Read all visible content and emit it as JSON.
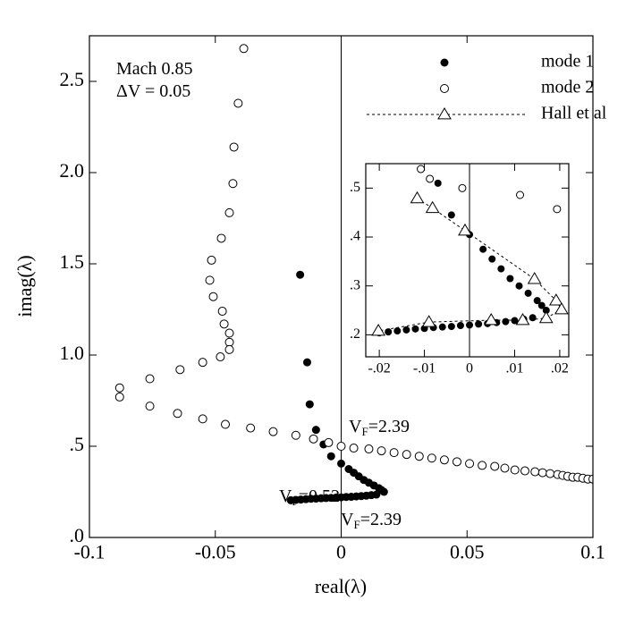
{
  "chart_data": [
    {
      "type": "scatter",
      "xlabel": "real(λ)",
      "ylabel": "imag(λ)",
      "xlim": [
        -0.1,
        0.1
      ],
      "ylim": [
        0,
        2.75
      ],
      "xticks": [
        -0.1,
        -0.05,
        0,
        0.05,
        0.1
      ],
      "yticks": [
        {
          "value": 0,
          "label": ".0"
        },
        {
          "value": 0.5,
          "label": ".5"
        },
        {
          "value": 1,
          "label": "1.0"
        },
        1.5,
        {
          "value": 2,
          "label": "2.0"
        },
        2.5
      ],
      "legend": "upper right",
      "annotations": [
        {
          "text": "Mach 0.85"
        },
        {
          "text": "ΔV = 0.05"
        },
        {
          "base": "V",
          "sub": "F",
          "text": "=2.39"
        },
        {
          "base": "V",
          "sub": "F",
          "text": "=0.52"
        },
        {
          "base": "V",
          "sub": "F",
          "text": "=2.39"
        }
      ],
      "series": [
        {
          "name": "mode 1",
          "marker": "filled-circle",
          "color": "#000000",
          "x": [
            -0.0163,
            -0.0135,
            -0.0125,
            -0.01,
            -0.007,
            -0.004,
            0,
            0.003,
            0.005,
            0.007,
            0.009,
            0.011,
            0.013,
            0.015,
            0.016,
            0.017,
            0.014,
            0.012,
            0.01,
            0.008,
            0.006,
            0.004,
            0.002,
            0,
            -0.002,
            -0.004,
            -0.006,
            -0.008,
            -0.01,
            -0.012,
            -0.014,
            -0.016,
            -0.018,
            -0.02
          ],
          "values": [
            1.44,
            0.96,
            0.73,
            0.59,
            0.51,
            0.445,
            0.405,
            0.375,
            0.355,
            0.335,
            0.315,
            0.3,
            0.285,
            0.27,
            0.26,
            0.25,
            0.235,
            0.232,
            0.229,
            0.227,
            0.225,
            0.223,
            0.222,
            0.22,
            0.219,
            0.217,
            0.216,
            0.215,
            0.213,
            0.212,
            0.21,
            0.208,
            0.206,
            0.204
          ]
        },
        {
          "name": "mode 2",
          "marker": "open-circle",
          "color": "#000000",
          "x": [
            -0.0387,
            -0.0409,
            -0.0426,
            -0.043,
            -0.0444,
            -0.0476,
            -0.0515,
            -0.0522,
            -0.0508,
            -0.0472,
            -0.0465,
            -0.0444,
            -0.0444,
            -0.0444,
            -0.048,
            -0.055,
            -0.064,
            -0.076,
            -0.088,
            -0.088,
            -0.076,
            -0.065,
            -0.055,
            -0.046,
            -0.036,
            -0.027,
            -0.018,
            -0.011,
            -0.005,
            0,
            0.005,
            0.011,
            0.016,
            0.021,
            0.026,
            0.031,
            0.036,
            0.041,
            0.046,
            0.051,
            0.056,
            0.061,
            0.065,
            0.069,
            0.073,
            0.077,
            0.08,
            0.083,
            0.086,
            0.088,
            0.09,
            0.092,
            0.094,
            0.096,
            0.098,
            0.1
          ],
          "values": [
            2.68,
            2.38,
            2.14,
            1.94,
            1.78,
            1.64,
            1.52,
            1.41,
            1.32,
            1.24,
            1.17,
            1.12,
            1.07,
            1.03,
            0.99,
            0.96,
            0.92,
            0.87,
            0.82,
            0.77,
            0.72,
            0.68,
            0.65,
            0.62,
            0.6,
            0.58,
            0.56,
            0.54,
            0.52,
            0.5,
            0.49,
            0.485,
            0.475,
            0.465,
            0.455,
            0.445,
            0.435,
            0.425,
            0.415,
            0.405,
            0.395,
            0.39,
            0.38,
            0.37,
            0.365,
            0.36,
            0.355,
            0.35,
            0.345,
            0.34,
            0.335,
            0.33,
            0.33,
            0.325,
            0.32,
            0.32
          ]
        }
      ]
    },
    {
      "type": "scatter",
      "xlim": [
        -0.023,
        0.022
      ],
      "ylim": [
        0.155,
        0.55
      ],
      "xticks": [
        {
          "value": -0.02,
          "label": "-.02"
        },
        {
          "value": -0.01,
          "label": "-.01"
        },
        0,
        {
          "value": 0.01,
          "label": ".01"
        },
        {
          "value": 0.02,
          "label": ".02"
        }
      ],
      "yticks": [
        {
          "value": 0.2,
          "label": ".2"
        },
        {
          "value": 0.3,
          "label": ".3"
        },
        {
          "value": 0.4,
          "label": ".4"
        },
        {
          "value": 0.5,
          "label": ".5"
        }
      ],
      "series": [
        {
          "name": "mode 1",
          "marker": "filled-circle",
          "color": "#000000",
          "x": [
            -0.007,
            -0.004,
            0,
            0.003,
            0.005,
            0.007,
            0.009,
            0.011,
            0.013,
            0.015,
            0.016,
            0.017,
            0.014,
            0.012,
            0.01,
            0.008,
            0.006,
            0.004,
            0.002,
            0,
            -0.002,
            -0.004,
            -0.006,
            -0.008,
            -0.01,
            -0.012,
            -0.014,
            -0.016,
            -0.018,
            -0.02
          ],
          "values": [
            0.51,
            0.445,
            0.405,
            0.375,
            0.355,
            0.335,
            0.315,
            0.3,
            0.285,
            0.27,
            0.26,
            0.25,
            0.235,
            0.232,
            0.229,
            0.227,
            0.225,
            0.223,
            0.222,
            0.22,
            0.219,
            0.217,
            0.216,
            0.215,
            0.213,
            0.212,
            0.21,
            0.208,
            0.206,
            0.204
          ]
        },
        {
          "name": "mode 2",
          "marker": "open-circle",
          "color": "#000000",
          "x": [
            -0.0108,
            -0.0088,
            -0.0016,
            0.0112,
            0.0194
          ],
          "values": [
            0.539,
            0.519,
            0.5,
            0.486,
            0.457
          ]
        },
        {
          "name": "Hall et al",
          "marker": "triangle",
          "line": "dashed",
          "color": "#000000",
          "x": [
            -0.0116,
            -0.0082,
            -0.001,
            0.0144,
            0.0192,
            0.0204,
            0.017,
            0.0118,
            0.0048,
            -0.009,
            -0.0202
          ],
          "values": [
            0.479,
            0.459,
            0.413,
            0.314,
            0.27,
            0.252,
            0.234,
            0.23,
            0.23,
            0.226,
            0.208
          ]
        }
      ]
    }
  ]
}
